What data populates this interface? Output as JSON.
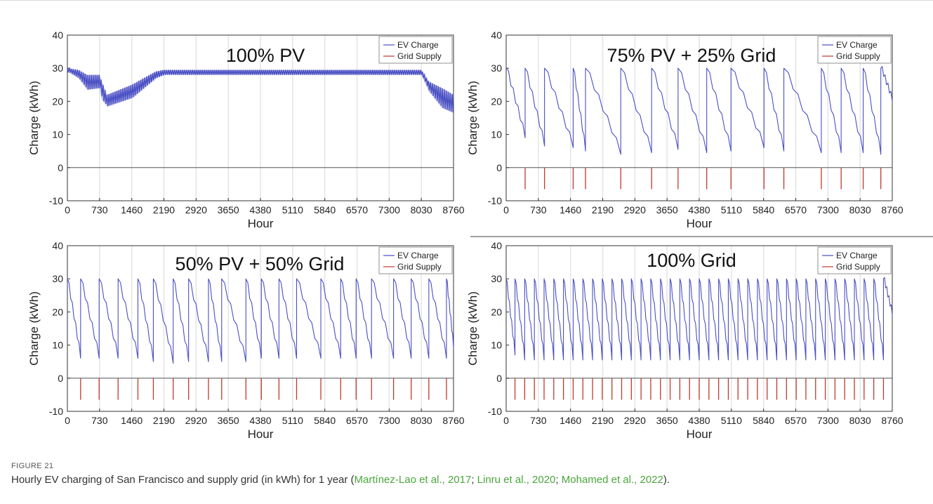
{
  "figure": {
    "label": "FIGURE 21",
    "caption_prefix": "Hourly EV charging of San Francisco and supply grid (in kWh) for 1 year (",
    "citations": [
      "Martínez-Lao et al., 2017",
      "Linru et al., 2020",
      "Mohamed et al., 2022"
    ],
    "citation_separator": "; ",
    "caption_suffix": ")."
  },
  "colors": {
    "ev_charge": "#4a4fc4",
    "grid_supply": "#c0392b",
    "axis": "#333333",
    "grid_lines": "#e4e4e4",
    "citation": "#4aa63c"
  },
  "chart_data": [
    {
      "type": "line",
      "title": "100% PV",
      "xlabel": "Hour",
      "ylabel": "Charge (kWh)",
      "xlim": [
        0,
        8760
      ],
      "ylim": [
        -10,
        40
      ],
      "xticks": [
        "0",
        "730",
        "1460",
        "2190",
        "2920",
        "3650",
        "4380",
        "5110",
        "5840",
        "6570",
        "7300",
        "8030",
        "8760"
      ],
      "yticks": [
        "-10",
        "0",
        "10",
        "20",
        "30",
        "40"
      ],
      "grid": "vertical",
      "legend": "top-right",
      "series": [
        {
          "name": "EV Charge",
          "pattern": "envelope",
          "upper": [
            [
              0,
              30
            ],
            [
              250,
              29.5
            ],
            [
              450,
              28
            ],
            [
              730,
              28
            ],
            [
              780,
              26
            ],
            [
              900,
              22
            ],
            [
              1460,
              25
            ],
            [
              2000,
              29
            ],
            [
              2190,
              29.5
            ],
            [
              8030,
              29.5
            ],
            [
              8200,
              26
            ],
            [
              8500,
              24
            ],
            [
              8760,
              22
            ]
          ],
          "lower": [
            [
              0,
              29
            ],
            [
              250,
              27
            ],
            [
              450,
              23.5
            ],
            [
              730,
              24
            ],
            [
              780,
              20.5
            ],
            [
              900,
              18.5
            ],
            [
              1460,
              21
            ],
            [
              2000,
              27
            ],
            [
              2190,
              28
            ],
            [
              8030,
              28
            ],
            [
              8200,
              23
            ],
            [
              8500,
              18
            ],
            [
              8760,
              16.5
            ]
          ]
        },
        {
          "name": "Grid Supply",
          "pattern": "zero"
        }
      ]
    },
    {
      "type": "line",
      "title": "75% PV + 25% Grid",
      "xlabel": "Hour",
      "ylabel": "Charge (kWh)",
      "xlim": [
        0,
        8760
      ],
      "ylim": [
        -10,
        40
      ],
      "xticks": [
        "0",
        "730",
        "1460",
        "2190",
        "2920",
        "3650",
        "4380",
        "5110",
        "5840",
        "6570",
        "7300",
        "8030",
        "8760"
      ],
      "yticks": [
        "-10",
        "0",
        "10",
        "20",
        "30",
        "40"
      ],
      "grid": "vertical",
      "legend": "top-right",
      "series": [
        {
          "name": "EV Charge",
          "pattern": "sawtooth",
          "cycles": [
            [
              0,
              9,
              30
            ],
            [
              430,
              6.5,
              30
            ],
            [
              870,
              6,
              30
            ],
            [
              1520,
              5,
              30
            ],
            [
              1800,
              4,
              30
            ],
            [
              2600,
              4.5,
              30
            ],
            [
              3300,
              5.5,
              30
            ],
            [
              3900,
              4.5,
              30
            ],
            [
              4550,
              5,
              30
            ],
            [
              5100,
              6,
              30
            ],
            [
              5850,
              5,
              30
            ],
            [
              6300,
              4.5,
              30
            ],
            [
              7150,
              4.5,
              30
            ],
            [
              7600,
              4.5,
              30
            ],
            [
              8100,
              4,
              30
            ],
            [
              8500,
              19,
              30
            ]
          ],
          "end_value": 20
        },
        {
          "name": "Grid Supply",
          "pattern": "spikes",
          "depth": -6.5,
          "x": [
            430,
            870,
            1520,
            1800,
            2600,
            3300,
            3900,
            4550,
            5100,
            5850,
            6300,
            7150,
            7600,
            8100,
            8500
          ]
        }
      ]
    },
    {
      "type": "line",
      "title": "50% PV + 50% Grid",
      "xlabel": "Hour",
      "ylabel": "Charge (kWh)",
      "xlim": [
        0,
        8760
      ],
      "ylim": [
        -10,
        40
      ],
      "xticks": [
        "0",
        "730",
        "1460",
        "2190",
        "2920",
        "3650",
        "4380",
        "5110",
        "5840",
        "6570",
        "7300",
        "8030",
        "8760"
      ],
      "yticks": [
        "-10",
        "0",
        "10",
        "20",
        "30",
        "40"
      ],
      "grid": "vertical",
      "legend": "top-right",
      "series": [
        {
          "name": "EV Charge",
          "pattern": "sawtooth",
          "cycles": [
            [
              0,
              6,
              30
            ],
            [
              300,
              6,
              30
            ],
            [
              720,
              6,
              30
            ],
            [
              1150,
              6,
              30
            ],
            [
              1600,
              5,
              30
            ],
            [
              1950,
              4.5,
              30
            ],
            [
              2400,
              5,
              30
            ],
            [
              2750,
              5,
              30
            ],
            [
              3200,
              5,
              30
            ],
            [
              3500,
              5,
              30
            ],
            [
              4050,
              6,
              30
            ],
            [
              4400,
              6,
              30
            ],
            [
              4800,
              6,
              30
            ],
            [
              5200,
              6,
              30
            ],
            [
              5750,
              6,
              30
            ],
            [
              6200,
              6,
              30
            ],
            [
              6550,
              6,
              30
            ],
            [
              6900,
              6,
              30
            ],
            [
              7400,
              6,
              30
            ],
            [
              7800,
              6,
              30
            ],
            [
              8200,
              6,
              30
            ],
            [
              8600,
              6.5,
              30
            ]
          ],
          "end_value": 9
        },
        {
          "name": "Grid Supply",
          "pattern": "spikes",
          "depth": -6.5,
          "x": [
            300,
            720,
            1150,
            1600,
            1950,
            2400,
            2750,
            3200,
            3500,
            4050,
            4400,
            4800,
            5200,
            5750,
            6200,
            6550,
            6900,
            7400,
            7800,
            8200,
            8600
          ]
        }
      ]
    },
    {
      "type": "line",
      "title": "100% Grid",
      "xlabel": "Hour",
      "ylabel": "Charge (kWh)",
      "xlim": [
        0,
        8760
      ],
      "ylim": [
        -10,
        40
      ],
      "xticks": [
        "0",
        "730",
        "1460",
        "2190",
        "2920",
        "3650",
        "4380",
        "5110",
        "5840",
        "6570",
        "7300",
        "8030",
        "8760"
      ],
      "yticks": [
        "-10",
        "0",
        "10",
        "20",
        "30",
        "40"
      ],
      "grid": "vertical",
      "legend": "top-right",
      "series": [
        {
          "name": "EV Charge",
          "pattern": "sawtooth",
          "cycles": [
            [
              0,
              7,
              30
            ],
            [
              200,
              5.5,
              30
            ],
            [
              420,
              5.5,
              30
            ],
            [
              640,
              5.5,
              30
            ],
            [
              860,
              5.5,
              30
            ],
            [
              1080,
              5.5,
              30
            ],
            [
              1300,
              5.5,
              30
            ],
            [
              1520,
              5.5,
              30
            ],
            [
              1740,
              5.5,
              30
            ],
            [
              1960,
              5.5,
              30
            ],
            [
              2180,
              5.5,
              30
            ],
            [
              2400,
              5.5,
              30
            ],
            [
              2620,
              5.5,
              30
            ],
            [
              2840,
              5.5,
              30
            ],
            [
              3060,
              5.5,
              30
            ],
            [
              3280,
              5.5,
              30
            ],
            [
              3500,
              5.5,
              30
            ],
            [
              3720,
              5.5,
              30
            ],
            [
              3940,
              5.5,
              30
            ],
            [
              4160,
              5.5,
              30
            ],
            [
              4380,
              5.5,
              30
            ],
            [
              4600,
              5.5,
              30
            ],
            [
              4820,
              5.5,
              30
            ],
            [
              5040,
              5.5,
              30
            ],
            [
              5260,
              5.5,
              30
            ],
            [
              5480,
              5.5,
              30
            ],
            [
              5700,
              5.5,
              30
            ],
            [
              5920,
              5.5,
              30
            ],
            [
              6140,
              5.5,
              30
            ],
            [
              6360,
              5.5,
              30
            ],
            [
              6580,
              5.5,
              30
            ],
            [
              6800,
              5.5,
              30
            ],
            [
              7020,
              5.5,
              30
            ],
            [
              7240,
              5.5,
              30
            ],
            [
              7460,
              5.5,
              30
            ],
            [
              7680,
              5.5,
              30
            ],
            [
              7900,
              5.5,
              30
            ],
            [
              8120,
              5.5,
              30
            ],
            [
              8340,
              5.5,
              30
            ],
            [
              8560,
              5.5,
              30
            ]
          ],
          "end_value": 19
        },
        {
          "name": "Grid Supply",
          "pattern": "spikes",
          "depth": -6.5,
          "x": [
            200,
            420,
            640,
            860,
            1080,
            1300,
            1520,
            1740,
            1960,
            2180,
            2400,
            2620,
            2840,
            3060,
            3280,
            3500,
            3720,
            3940,
            4160,
            4380,
            4600,
            4820,
            5040,
            5260,
            5480,
            5700,
            5920,
            6140,
            6360,
            6580,
            6800,
            7020,
            7240,
            7460,
            7680,
            7900,
            8120,
            8340,
            8560
          ]
        }
      ]
    }
  ]
}
